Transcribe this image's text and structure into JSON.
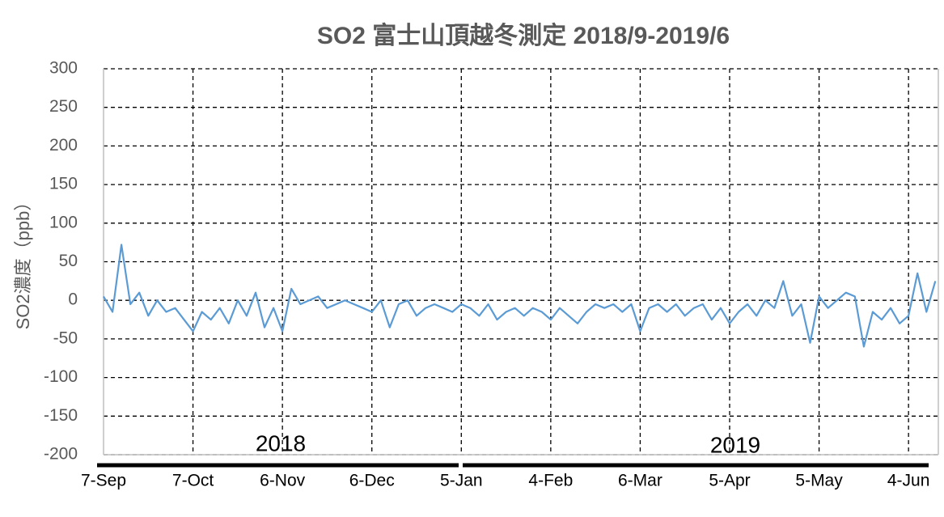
{
  "chart_data": {
    "type": "line",
    "title": "SO2  富士山頂越冬測定 2018/9-2019/6",
    "ylabel": "SO2濃度（ppb）",
    "annotations": [
      "2018",
      "2019"
    ],
    "x": [
      "2018-09-07",
      "2018-09-10",
      "2018-09-13",
      "2018-09-16",
      "2018-09-19",
      "2018-09-22",
      "2018-09-25",
      "2018-09-28",
      "2018-10-01",
      "2018-10-04",
      "2018-10-07",
      "2018-10-10",
      "2018-10-13",
      "2018-10-16",
      "2018-10-19",
      "2018-10-22",
      "2018-10-25",
      "2018-10-28",
      "2018-10-31",
      "2018-11-03",
      "2018-11-06",
      "2018-11-09",
      "2018-11-12",
      "2018-11-15",
      "2018-11-18",
      "2018-11-21",
      "2018-11-24",
      "2018-11-27",
      "2018-11-30",
      "2018-12-03",
      "2018-12-06",
      "2018-12-09",
      "2018-12-12",
      "2018-12-15",
      "2018-12-18",
      "2018-12-21",
      "2018-12-24",
      "2018-12-27",
      "2018-12-30",
      "2019-01-02",
      "2019-01-05",
      "2019-01-08",
      "2019-01-11",
      "2019-01-14",
      "2019-01-17",
      "2019-01-20",
      "2019-01-23",
      "2019-01-26",
      "2019-01-29",
      "2019-02-01",
      "2019-02-04",
      "2019-02-07",
      "2019-02-10",
      "2019-02-13",
      "2019-02-16",
      "2019-02-19",
      "2019-02-22",
      "2019-02-25",
      "2019-02-28",
      "2019-03-03",
      "2019-03-06",
      "2019-03-09",
      "2019-03-12",
      "2019-03-15",
      "2019-03-18",
      "2019-03-21",
      "2019-03-24",
      "2019-03-27",
      "2019-03-30",
      "2019-04-02",
      "2019-04-05",
      "2019-04-08",
      "2019-04-11",
      "2019-04-14",
      "2019-04-17",
      "2019-04-20",
      "2019-04-23",
      "2019-04-26",
      "2019-04-29",
      "2019-05-02",
      "2019-05-05",
      "2019-05-08",
      "2019-05-11",
      "2019-05-14",
      "2019-05-17",
      "2019-05-20",
      "2019-05-23",
      "2019-05-26",
      "2019-05-29",
      "2019-06-01",
      "2019-06-04",
      "2019-06-07",
      "2019-06-10",
      "2019-06-13"
    ],
    "series": [
      {
        "name": "SO2",
        "color": "#5b9bd5",
        "values": [
          5,
          -15,
          72,
          -5,
          10,
          -20,
          0,
          -15,
          -10,
          -25,
          -40,
          -15,
          -25,
          -10,
          -30,
          0,
          -20,
          10,
          -35,
          -10,
          -40,
          15,
          -5,
          0,
          5,
          -10,
          -5,
          0,
          -5,
          -10,
          -15,
          0,
          -35,
          -5,
          0,
          -20,
          -10,
          -5,
          -10,
          -15,
          -5,
          -10,
          -20,
          -5,
          -25,
          -15,
          -10,
          -20,
          -10,
          -15,
          -25,
          -10,
          -20,
          -30,
          -15,
          -5,
          -10,
          -5,
          -15,
          -5,
          -40,
          -10,
          -5,
          -15,
          -5,
          -20,
          -10,
          -5,
          -25,
          -10,
          -30,
          -15,
          -5,
          -20,
          0,
          -10,
          25,
          -20,
          -5,
          -55,
          5,
          -10,
          0,
          10,
          5,
          -60,
          -15,
          -25,
          -10,
          -30,
          -20,
          35,
          -15,
          25
        ]
      }
    ],
    "xlim": [
      "2018-09-07",
      "2019-06-14"
    ],
    "xticks": [
      {
        "value": "2018-09-07",
        "label": "7-Sep"
      },
      {
        "value": "2018-10-07",
        "label": "7-Oct"
      },
      {
        "value": "2018-11-06",
        "label": "6-Nov"
      },
      {
        "value": "2018-12-06",
        "label": "6-Dec"
      },
      {
        "value": "2019-01-05",
        "label": "5-Jan"
      },
      {
        "value": "2019-02-04",
        "label": "4-Feb"
      },
      {
        "value": "2019-03-06",
        "label": "6-Mar"
      },
      {
        "value": "2019-04-05",
        "label": "5-Apr"
      },
      {
        "value": "2019-05-05",
        "label": "5-May"
      },
      {
        "value": "2019-06-04",
        "label": "4-Jun"
      }
    ],
    "ylim": [
      -200,
      300
    ],
    "yticks": [
      -200,
      -150,
      -100,
      -50,
      0,
      50,
      100,
      150,
      200,
      250,
      300
    ],
    "grid": true
  }
}
